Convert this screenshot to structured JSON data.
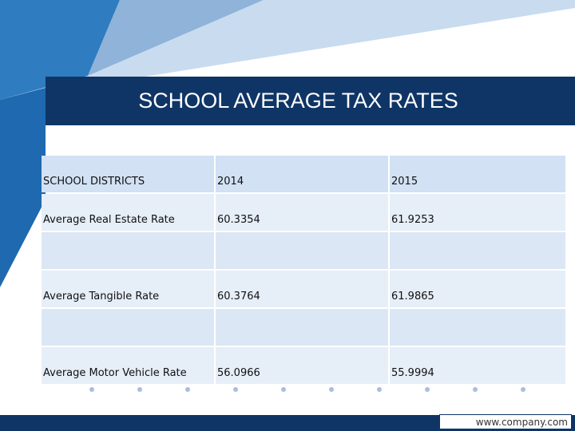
{
  "header": {
    "title": "SCHOOL AVERAGE TAX RATES"
  },
  "table": {
    "columns": [
      "SCHOOL DISTRICTS",
      "2014",
      "2015"
    ],
    "rows": [
      [
        "Average Real Estate Rate",
        "60.3354",
        "61.9253"
      ],
      [
        "Average Tangible Rate",
        "60.3764",
        "61.9865"
      ],
      [
        "Average Motor Vehicle Rate",
        "56.0966",
        "55.9994"
      ]
    ]
  },
  "footer": {
    "url": "www.company.com"
  }
}
